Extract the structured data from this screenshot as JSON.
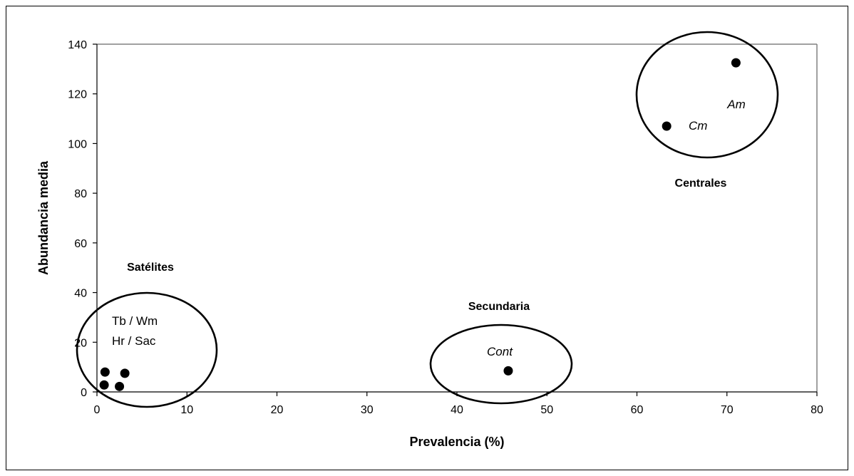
{
  "chart_data": {
    "type": "scatter",
    "xlabel": "Prevalencia (%)",
    "ylabel": "Abundancia media",
    "xlim": [
      0,
      80
    ],
    "ylim": [
      0,
      140
    ],
    "xticks": [
      "0",
      "10",
      "20",
      "30",
      "40",
      "50",
      "60",
      "70",
      "80"
    ],
    "yticks": [
      "0",
      "20",
      "40",
      "60",
      "80",
      "100",
      "120",
      "140"
    ],
    "grid": false,
    "points": [
      {
        "x": 71.0,
        "y": 132.5,
        "label": "Am"
      },
      {
        "x": 63.3,
        "y": 107.0,
        "label": "Cm"
      },
      {
        "x": 45.7,
        "y": 8.5,
        "label": "Cont"
      },
      {
        "x": 0.9,
        "y": 8.0
      },
      {
        "x": 3.1,
        "y": 7.5
      },
      {
        "x": 0.8,
        "y": 2.8
      },
      {
        "x": 2.5,
        "y": 2.2
      }
    ],
    "groups": [
      {
        "name": "Centrales",
        "members": [
          "Am",
          "Cm"
        ]
      },
      {
        "name": "Secundaria",
        "members": [
          "Cont"
        ]
      },
      {
        "name": "Satélites",
        "members": [
          "Tb / Wm",
          "Hr / Sac"
        ]
      }
    ],
    "satellite_labels": [
      "Tb / Wm",
      "Hr / Sac"
    ]
  }
}
